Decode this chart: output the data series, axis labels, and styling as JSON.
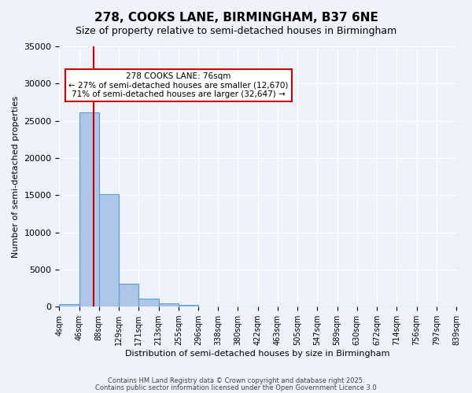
{
  "title": "278, COOKS LANE, BIRMINGHAM, B37 6NE",
  "subtitle": "Size of property relative to semi-detached houses in Birmingham",
  "xlabel": "Distribution of semi-detached houses by size in Birmingham",
  "ylabel": "Number of semi-detached properties",
  "bin_labels": [
    "4sqm",
    "46sqm",
    "88sqm",
    "129sqm",
    "171sqm",
    "213sqm",
    "255sqm",
    "296sqm",
    "338sqm",
    "380sqm",
    "422sqm",
    "463sqm",
    "505sqm",
    "547sqm",
    "589sqm",
    "630sqm",
    "672sqm",
    "714sqm",
    "756sqm",
    "797sqm",
    "839sqm"
  ],
  "bar_values": [
    300,
    26100,
    15100,
    3050,
    1100,
    420,
    280,
    0,
    0,
    0,
    0,
    0,
    0,
    0,
    0,
    0,
    0,
    0,
    0,
    0
  ],
  "bar_color": "#aec6e8",
  "bar_edge_color": "#5a9fd4",
  "ylim": [
    0,
    35000
  ],
  "yticks": [
    0,
    5000,
    10000,
    15000,
    20000,
    25000,
    30000,
    35000
  ],
  "property_size": 76,
  "property_line_color": "#cc0000",
  "annotation_text": "278 COOKS LANE: 76sqm\n← 27% of semi-detached houses are smaller (12,670)\n71% of semi-detached houses are larger (32,647) →",
  "annotation_box_color": "#ffffff",
  "annotation_border_color": "#cc0000",
  "footer1": "Contains HM Land Registry data © Crown copyright and database right 2025.",
  "footer2": "Contains public sector information licensed under the Open Government Licence 3.0",
  "bg_color": "#eef3fb",
  "grid_color": "#ffffff",
  "bin_edges": [
    4,
    46,
    88,
    129,
    171,
    213,
    255,
    296,
    338,
    380,
    422,
    463,
    505,
    547,
    589,
    630,
    672,
    714,
    756,
    797,
    839
  ]
}
